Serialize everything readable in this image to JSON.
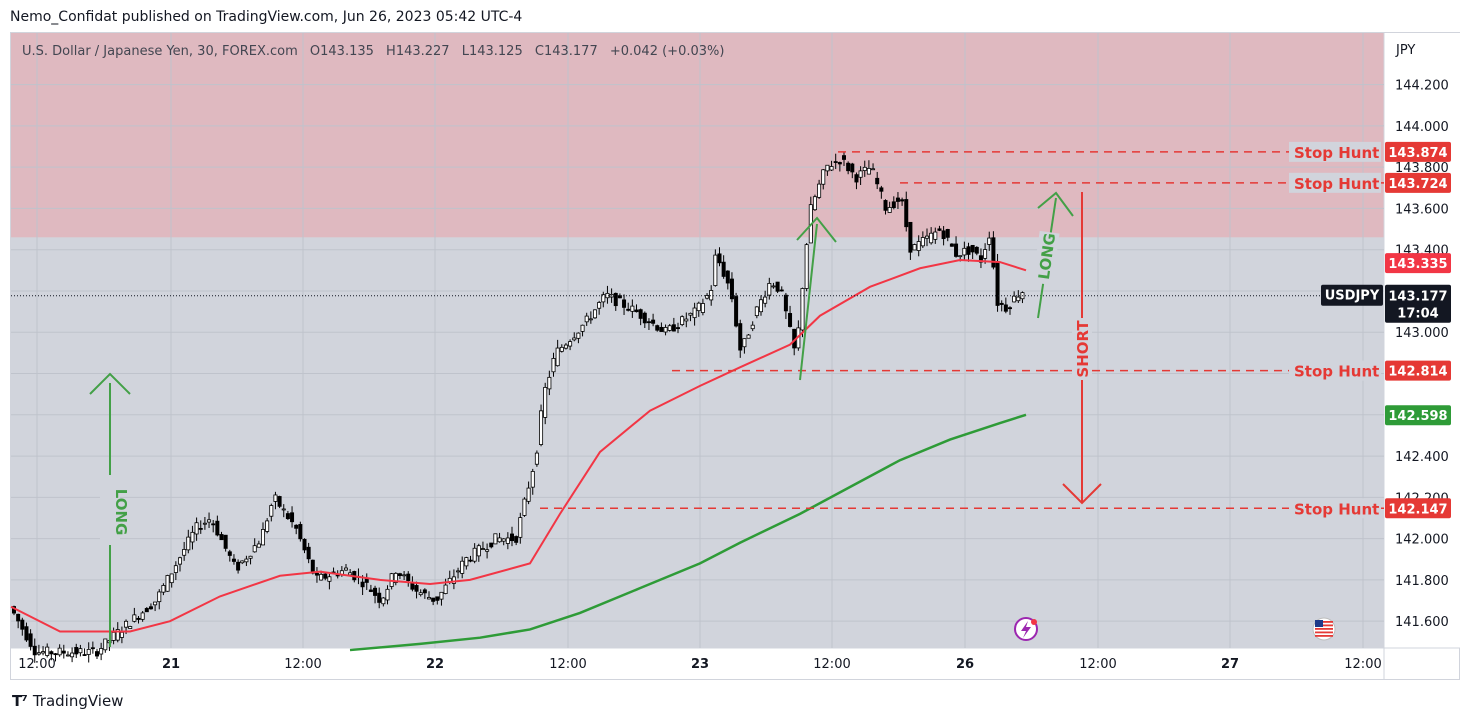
{
  "publisher_line": "Nemo_Confidat published on TradingView.com, Jun 26, 2023 05:42 UTC-4",
  "legend": {
    "symbol_desc": "U.S. Dollar / Japanese Yen, 30, FOREX.com",
    "open_label": "O",
    "open": "143.135",
    "high_label": "H",
    "high": "143.227",
    "low_label": "L",
    "low": "143.125",
    "close_label": "C",
    "close": "143.177",
    "change": "+0.042 (+0.03%)"
  },
  "brand": "TradingView",
  "colors": {
    "zone": "#dfb9c0",
    "plot_bg": "#d1d4dc",
    "ma_fast": "#f23645",
    "ma_slow": "#2e9b37",
    "hunt": "#e53935",
    "long_arrow": "#43a047",
    "short_arrow": "#e53935"
  },
  "chart_data": {
    "type": "candlestick",
    "symbol": "USDJPY",
    "timeframe": "30",
    "y_axis": {
      "currency": "JPY",
      "ticks": [
        "144.200",
        "144.000",
        "143.800",
        "143.600",
        "143.400",
        "143.200",
        "143.000",
        "142.800",
        "142.600",
        "142.400",
        "142.200",
        "142.000",
        "141.800",
        "141.600"
      ],
      "ylim": [
        141.47,
        144.45
      ]
    },
    "x_axis": {
      "ticks": [
        "12:00",
        "21",
        "12:00",
        "22",
        "12:00",
        "23",
        "12:00",
        "26",
        "12:00",
        "27",
        "12:00"
      ]
    },
    "last_price": {
      "label": "USDJPY",
      "value": "143.177",
      "countdown": "17:04"
    },
    "price_tags": [
      {
        "value": "143.874",
        "kind": "hunt"
      },
      {
        "value": "143.724",
        "kind": "hunt"
      },
      {
        "value": "143.335",
        "kind": "ma_fast"
      },
      {
        "value": "142.814",
        "kind": "hunt"
      },
      {
        "value": "142.598",
        "kind": "ma_slow"
      },
      {
        "value": "142.147",
        "kind": "hunt"
      }
    ],
    "resistance_zone": {
      "from": 143.46,
      "to": 144.45
    },
    "stop_hunt_label": "Stop Hunt",
    "annotations": {
      "long_left": "LONG",
      "long_right": "LONG",
      "short": "SHORT"
    }
  }
}
